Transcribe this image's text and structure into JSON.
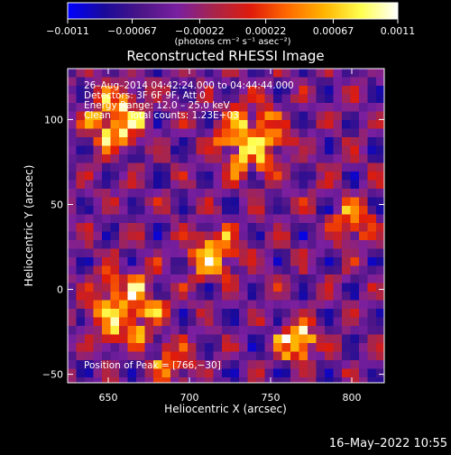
{
  "chart_data": {
    "type": "heatmap",
    "title": "Reconstructed RHESSI Image",
    "xlabel": "Heliocentric X (arcsec)",
    "ylabel": "Heliocentric Y (arcsec)",
    "xlim": [
      625,
      820
    ],
    "ylim": [
      -55,
      130
    ],
    "x_ticks": [
      650,
      700,
      750,
      800
    ],
    "x_tick_labels": [
      "650",
      "700",
      "750",
      "800"
    ],
    "y_ticks": [
      -50,
      0,
      50,
      100
    ],
    "y_tick_labels": [
      "−50",
      "0",
      "50",
      "100"
    ],
    "colorbar": {
      "range": [
        -0.0011,
        0.0011
      ],
      "tick_values": [
        -0.0011,
        -0.00067,
        -0.00022,
        0.00022,
        0.00067,
        0.0011
      ],
      "tick_labels": [
        "−0.0011",
        "−0.00067",
        "−0.00022",
        "0.00022",
        "0.00067",
        "0.0011"
      ],
      "units": "(photons cm⁻² s⁻¹ asec⁻²)",
      "colormap": [
        "#0000ff",
        "#1a0a9a",
        "#4b1587",
        "#7a1fa0",
        "#a8244a",
        "#e01b0b",
        "#ff6a00",
        "#ffb400",
        "#ffff50",
        "#ffffff"
      ]
    },
    "annotations": [
      "26–Aug–2014 04:42:24.000 to 04:44:44.000",
      "Detectors: 3F 6F 9F, Att 0",
      "Energy Range: 12.0 – 25.0 keV",
      "Clean      Total counts: 1.23E+03"
    ],
    "peak_label": "Position of Peak = [766,−30]",
    "peak_position": [
      766,
      -30
    ],
    "sources": [
      {
        "x": 655,
        "y": 100,
        "radius": 22,
        "amplitude": 0.9
      },
      {
        "x": 738,
        "y": 88,
        "radius": 26,
        "amplitude": 0.85
      },
      {
        "x": 715,
        "y": 20,
        "radius": 20,
        "amplitude": 0.75
      },
      {
        "x": 660,
        "y": -12,
        "radius": 28,
        "amplitude": 0.8
      },
      {
        "x": 800,
        "y": 40,
        "radius": 16,
        "amplitude": 0.6
      },
      {
        "x": 766,
        "y": -30,
        "radius": 14,
        "amplitude": 1.0
      },
      {
        "x": 690,
        "y": -45,
        "radius": 16,
        "amplitude": 0.55
      }
    ]
  },
  "footer": {
    "timestamp": "16–May–2022 10:55"
  }
}
